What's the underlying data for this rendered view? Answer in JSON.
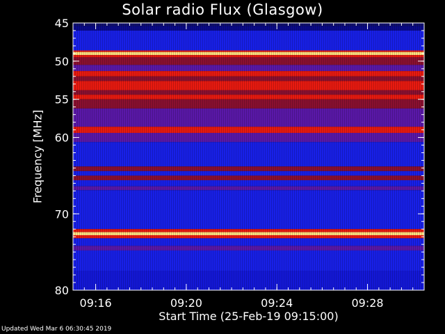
{
  "chart_data": {
    "type": "heatmap",
    "title": "Solar radio Flux (Glasgow)",
    "xlabel": "Start Time (25-Feb-19 09:15:00)",
    "ylabel": "Frequency [MHz]",
    "ylim": [
      45,
      80
    ],
    "y_ticks": [
      45,
      50,
      55,
      60,
      70,
      80
    ],
    "x_ticks": [
      "09:16",
      "09:20",
      "09:24",
      "09:28"
    ],
    "x_tick_minutes": [
      16,
      20,
      24,
      28
    ],
    "xlim_minutes": [
      15,
      30.5
    ],
    "colors": {
      "background": "#1820e8",
      "low": "#0a0a8a",
      "mid": "#8a1030",
      "high": "#e81a10",
      "peak": "#ffe080"
    },
    "bands": [
      {
        "f0": 45.0,
        "f1": 45.4,
        "level": "low2"
      },
      {
        "f0": 45.4,
        "f1": 46.0,
        "level": "low"
      },
      {
        "f0": 46.0,
        "f1": 48.6,
        "level": "bg"
      },
      {
        "f0": 48.6,
        "f1": 48.8,
        "level": "high"
      },
      {
        "f0": 48.8,
        "f1": 49.2,
        "level": "peak"
      },
      {
        "f0": 49.2,
        "f1": 49.5,
        "level": "high"
      },
      {
        "f0": 49.5,
        "f1": 50.5,
        "level": "mid"
      },
      {
        "f0": 50.5,
        "f1": 51.3,
        "level": "mid2"
      },
      {
        "f0": 51.3,
        "f1": 52.0,
        "level": "high"
      },
      {
        "f0": 52.0,
        "f1": 52.6,
        "level": "mid"
      },
      {
        "f0": 52.6,
        "f1": 53.8,
        "level": "high"
      },
      {
        "f0": 53.8,
        "f1": 54.4,
        "level": "mid"
      },
      {
        "f0": 54.4,
        "f1": 55.0,
        "level": "high"
      },
      {
        "f0": 55.0,
        "f1": 56.2,
        "level": "mid"
      },
      {
        "f0": 56.2,
        "f1": 58.6,
        "level": "mid2"
      },
      {
        "f0": 58.6,
        "f1": 59.4,
        "level": "high"
      },
      {
        "f0": 59.4,
        "f1": 60.6,
        "level": "mid2"
      },
      {
        "f0": 60.6,
        "f1": 63.8,
        "level": "bg"
      },
      {
        "f0": 63.8,
        "f1": 64.4,
        "level": "mid"
      },
      {
        "f0": 64.4,
        "f1": 65.0,
        "level": "bg"
      },
      {
        "f0": 65.0,
        "f1": 65.6,
        "level": "mid"
      },
      {
        "f0": 65.6,
        "f1": 66.4,
        "level": "bg"
      },
      {
        "f0": 66.4,
        "f1": 66.9,
        "level": "mid2"
      },
      {
        "f0": 66.9,
        "f1": 72.0,
        "level": "bg"
      },
      {
        "f0": 72.0,
        "f1": 72.4,
        "level": "high"
      },
      {
        "f0": 72.4,
        "f1": 72.8,
        "level": "peak"
      },
      {
        "f0": 72.8,
        "f1": 73.2,
        "level": "high"
      },
      {
        "f0": 73.2,
        "f1": 74.2,
        "level": "bg"
      },
      {
        "f0": 74.2,
        "f1": 74.8,
        "level": "mid2"
      },
      {
        "f0": 74.8,
        "f1": 77.5,
        "level": "bg"
      },
      {
        "f0": 77.5,
        "f1": 80.0,
        "level": "bg2"
      }
    ]
  },
  "footer": "Updated Wed Mar  6 06:30:45 2019"
}
